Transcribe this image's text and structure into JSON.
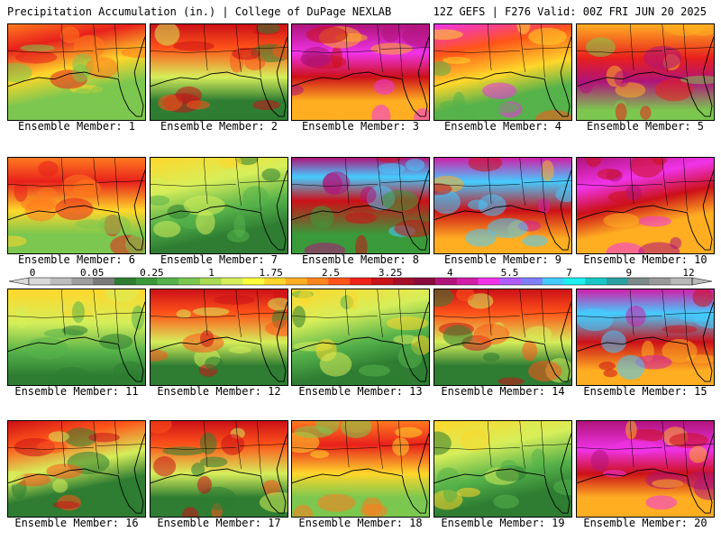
{
  "header": {
    "left": "Precipitation Accumulation (in.) | College of DuPage NEXLAB",
    "right": "12Z GEFS | F276 Valid: 00Z FRI JUN 20 2025"
  },
  "caption_prefix": "Ensemble Member: ",
  "members": [
    {
      "id": "1",
      "label": "Ensemble Member: 1",
      "tone": "wet-north"
    },
    {
      "id": "2",
      "label": "Ensemble Member: 2",
      "tone": "wet-north-dry-south"
    },
    {
      "id": "3",
      "label": "Ensemble Member: 3",
      "tone": "very-wet-center"
    },
    {
      "id": "4",
      "label": "Ensemble Member: 4",
      "tone": "wet-west"
    },
    {
      "id": "5",
      "label": "Ensemble Member: 5",
      "tone": "wet-east"
    },
    {
      "id": "6",
      "label": "Ensemble Member: 6",
      "tone": "wet-north"
    },
    {
      "id": "7",
      "label": "Ensemble Member: 7",
      "tone": "dry"
    },
    {
      "id": "8",
      "label": "Ensemble Member: 8",
      "tone": "very-wet-north"
    },
    {
      "id": "9",
      "label": "Ensemble Member: 9",
      "tone": "very-wet-west"
    },
    {
      "id": "10",
      "label": "Ensemble Member: 10",
      "tone": "very-wet-center"
    },
    {
      "id": "11",
      "label": "Ensemble Member: 11",
      "tone": "dry"
    },
    {
      "id": "12",
      "label": "Ensemble Member: 12",
      "tone": "wet-north-dry-south"
    },
    {
      "id": "13",
      "label": "Ensemble Member: 13",
      "tone": "dry"
    },
    {
      "id": "14",
      "label": "Ensemble Member: 14",
      "tone": "wet-north-dry-south"
    },
    {
      "id": "15",
      "label": "Ensemble Member: 15",
      "tone": "very-wet-west"
    },
    {
      "id": "16",
      "label": "Ensemble Member: 16",
      "tone": "wet-north-dry-south"
    },
    {
      "id": "17",
      "label": "Ensemble Member: 17",
      "tone": "wet-north-dry-south"
    },
    {
      "id": "18",
      "label": "Ensemble Member: 18",
      "tone": "wet-north"
    },
    {
      "id": "19",
      "label": "Ensemble Member: 19",
      "tone": "dry"
    },
    {
      "id": "20",
      "label": "Ensemble Member: 20",
      "tone": "very-wet-center"
    }
  ],
  "colorbar": {
    "tick_labels": [
      "0",
      "0.05",
      "0.25",
      "1",
      "1.75",
      "2.5",
      "3.25",
      "4",
      "5.5",
      "7",
      "9",
      "12"
    ],
    "colors": [
      "#d9d9d9",
      "#bdbdbd",
      "#9e9e9e",
      "#7a7a7a",
      "#2e7d32",
      "#3a9a3a",
      "#56b24a",
      "#7cc74f",
      "#a9dc54",
      "#d6ee5a",
      "#ffff3c",
      "#ffd72a",
      "#ffae22",
      "#ff851e",
      "#ff5419",
      "#f0221a",
      "#cc1018",
      "#a60d2a",
      "#8a0a3d",
      "#b0137a",
      "#d21ea8",
      "#f033e8",
      "#b05cff",
      "#8080ff",
      "#44ccff",
      "#1ef0f0",
      "#18c8c8",
      "#2aa0a0",
      "#7d8a8a",
      "#9a9a9a",
      "#b8b8b8"
    ]
  }
}
